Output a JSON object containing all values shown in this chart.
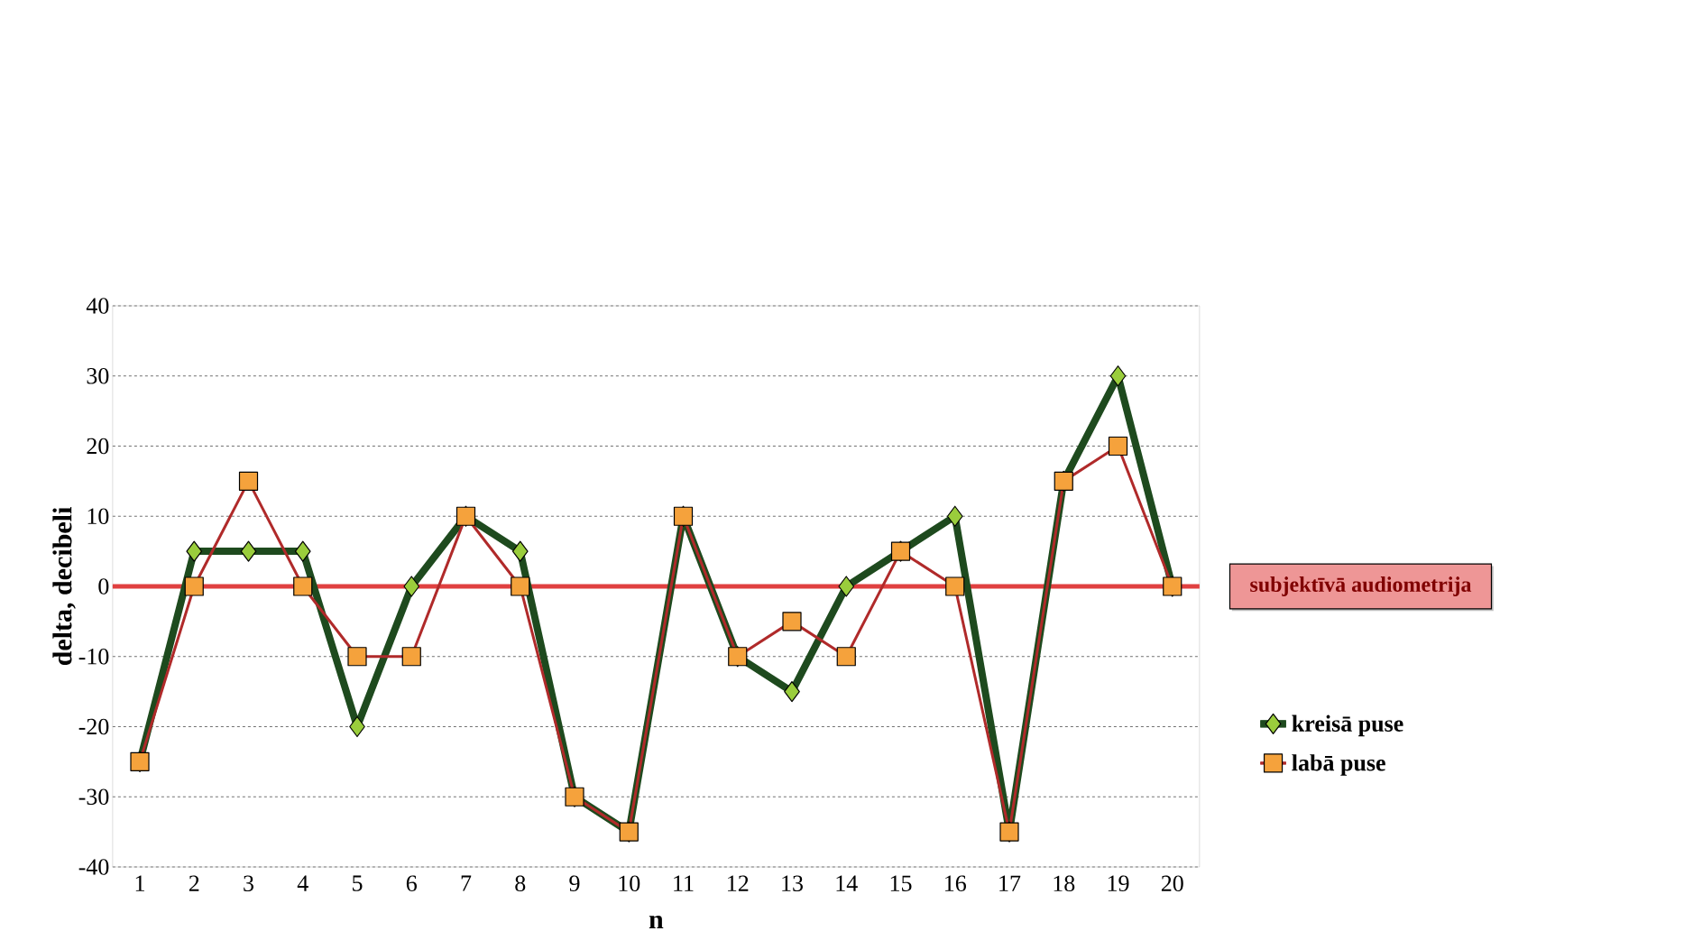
{
  "chart_data": {
    "type": "line",
    "xlabel": "n",
    "ylabel": "delta, decibeli",
    "categories": [
      "1",
      "2",
      "3",
      "4",
      "5",
      "6",
      "7",
      "8",
      "9",
      "10",
      "11",
      "12",
      "13",
      "14",
      "15",
      "16",
      "17",
      "18",
      "19",
      "20"
    ],
    "series": [
      {
        "name": "kreisā puse",
        "color": "#1e4a1e",
        "marker": "diamond",
        "values": [
          -25,
          5,
          5,
          5,
          -20,
          0,
          10,
          5,
          -30,
          -35,
          10,
          -10,
          -15,
          0,
          5,
          10,
          -35,
          15,
          30,
          0
        ]
      },
      {
        "name": "labā puse",
        "color": "#b02a2a",
        "marker": "square",
        "values": [
          -25,
          0,
          15,
          0,
          -10,
          -10,
          10,
          0,
          -30,
          -35,
          10,
          -10,
          -5,
          -10,
          5,
          0,
          -35,
          15,
          20,
          0
        ]
      }
    ],
    "ylim": [
      -40,
      40
    ],
    "yticks": [
      -40,
      -30,
      -20,
      -10,
      0,
      10,
      20,
      30,
      40
    ],
    "grid": "y",
    "legend": "right",
    "ref_lines": [
      {
        "axis": "y",
        "value": 0,
        "label": "subjektīvā audiometrija",
        "color": "#e04040"
      }
    ]
  }
}
